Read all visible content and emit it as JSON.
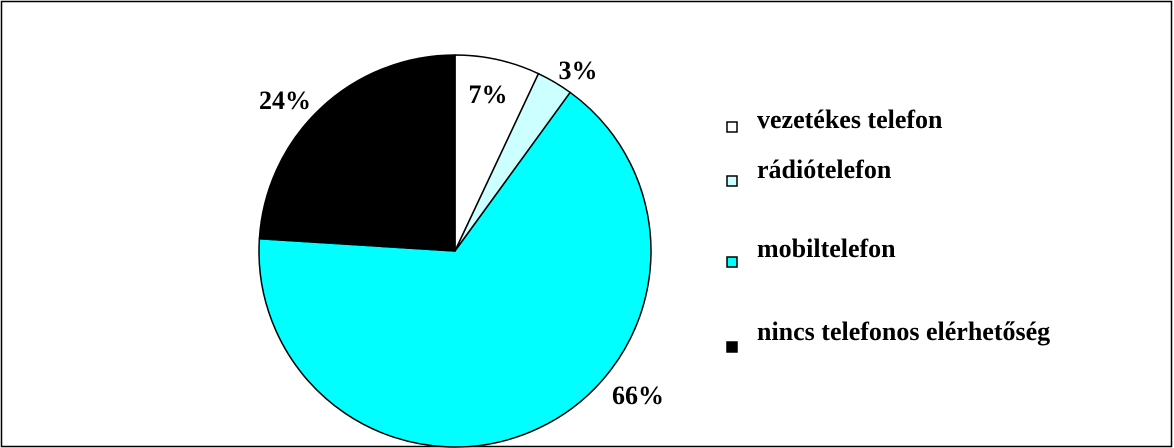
{
  "chart_data": {
    "type": "pie",
    "categories": [
      "vezetékes telefon",
      "rádiótelefon",
      "mobiltelefon",
      "nincs telefonos elérhetőség"
    ],
    "values": [
      7,
      3,
      66,
      24
    ],
    "value_labels": [
      "7%",
      "3%",
      "66%",
      "24%"
    ],
    "colors": [
      "#ffffff",
      "#ccffff",
      "#00ffff",
      "#000000"
    ],
    "legend": "right"
  }
}
